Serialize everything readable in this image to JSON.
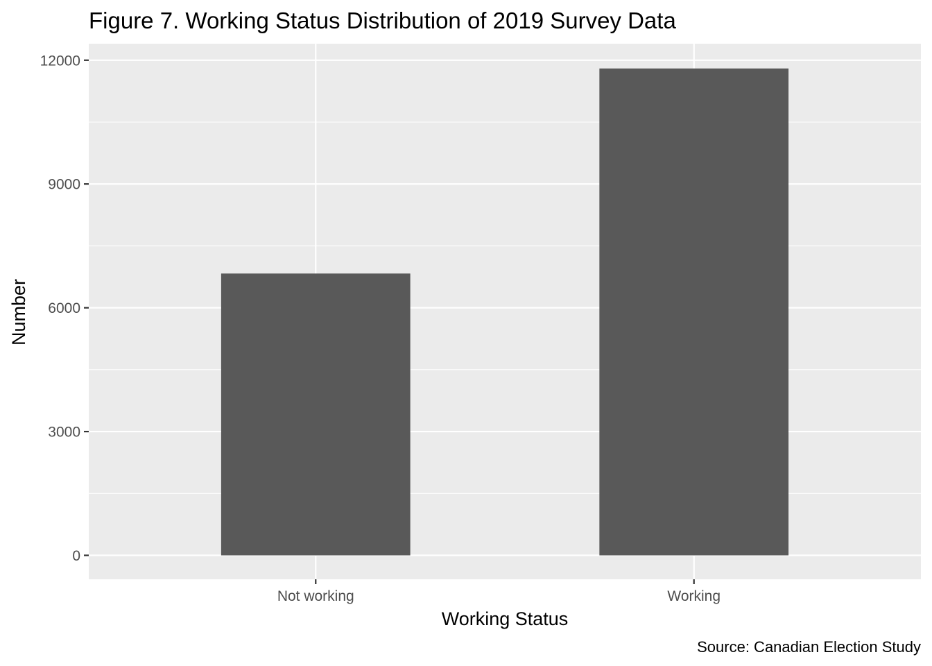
{
  "chart_data": {
    "type": "bar",
    "title": "Figure 7. Working Status Distribution of 2019 Survey Data",
    "xlabel": "Working Status",
    "ylabel": "Number",
    "caption": "Source: Canadian Election Study",
    "categories": [
      "Not working",
      "Working"
    ],
    "values": [
      6830,
      11800
    ],
    "ylim": [
      -580,
      12400
    ],
    "yticks": [
      0,
      3000,
      6000,
      9000,
      12000
    ],
    "grid": true,
    "legend": "none",
    "colors": {
      "bar": "#595959",
      "panel": "#ebebeb",
      "grid": "#ffffff",
      "tick": "#333333"
    }
  }
}
